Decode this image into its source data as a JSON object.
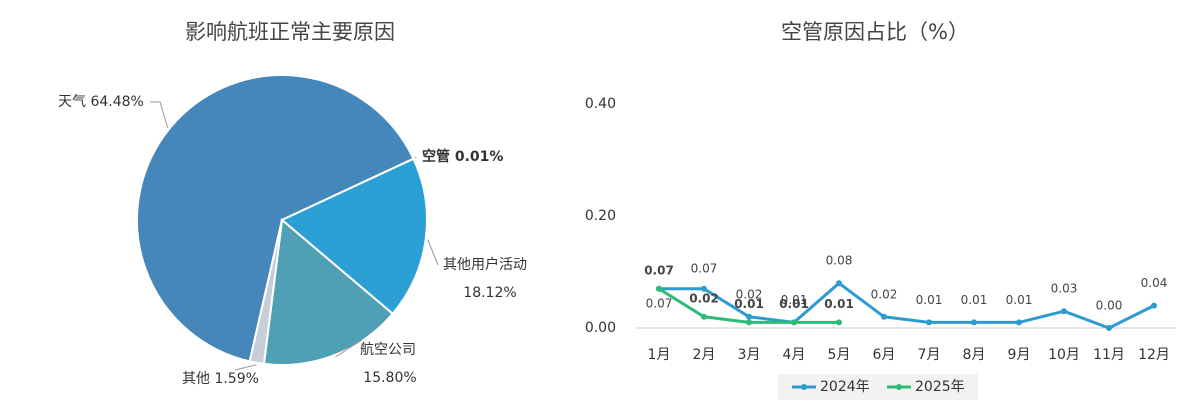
{
  "chart_data": [
    {
      "type": "pie",
      "title": "影响航班正常主要原因",
      "categories": [
        "天气",
        "空管",
        "其他用户活动",
        "航空公司",
        "其他"
      ],
      "values": [
        64.48,
        0.01,
        18.12,
        15.8,
        1.59
      ],
      "value_labels": [
        "64.48%",
        "0.01%",
        "18.12%",
        "15.80%",
        "1.59%"
      ],
      "colors": [
        "#4587bb",
        "#2a9fd6",
        "#2c9fd5",
        "#4f9fb5",
        "#c8ced7"
      ]
    },
    {
      "type": "line",
      "title": "空管原因占比（%）",
      "categories": [
        "1月",
        "2月",
        "3月",
        "4月",
        "5月",
        "6月",
        "7月",
        "8月",
        "9月",
        "10月",
        "11月",
        "12月"
      ],
      "series": [
        {
          "name": "2024年",
          "color": "#2e9bd0",
          "values": [
            0.07,
            0.07,
            0.02,
            0.01,
            0.08,
            0.02,
            0.01,
            0.01,
            0.01,
            0.03,
            0,
            0.04
          ],
          "value_labels": [
            "0.07",
            "0.07",
            "0.02",
            "0.01",
            "0.08",
            "0.02",
            "0.01",
            "0.01",
            "0.01",
            "0.03",
            "0.00",
            "0.04"
          ]
        },
        {
          "name": "2025年",
          "color": "#2dbb77",
          "values": [
            0.07,
            0.02,
            0.01,
            0.01,
            0.01,
            null,
            null,
            null,
            null,
            null,
            null,
            null
          ],
          "value_labels": [
            "0.07",
            "0.02",
            "0.01",
            "0.01",
            "0.01",
            null,
            null,
            null,
            null,
            null,
            null,
            null
          ]
        }
      ],
      "ylim": [
        0,
        0.4
      ],
      "yticks": [
        {
          "value": 0,
          "label": "0.00"
        },
        {
          "value": 0.2,
          "label": "0.20"
        },
        {
          "value": 0.4,
          "label": "0.40"
        }
      ]
    }
  ]
}
